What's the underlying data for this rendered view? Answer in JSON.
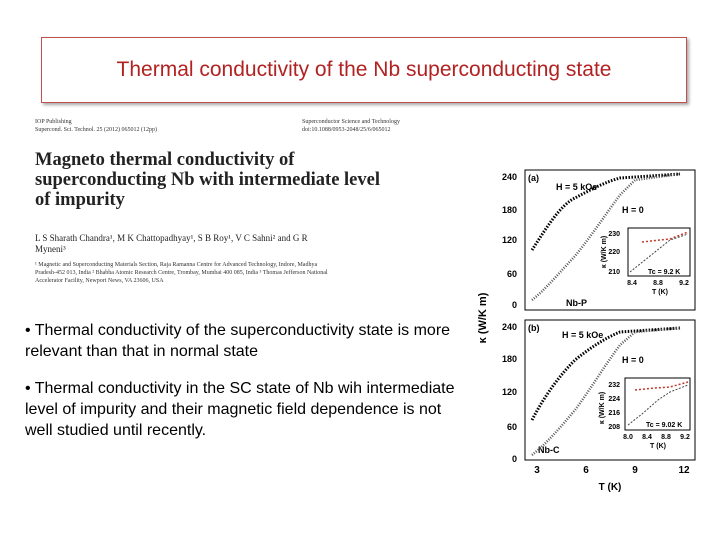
{
  "slide": {
    "title": "Thermal conductivity of the Nb superconducting state"
  },
  "paper": {
    "header_left_1": "IOP Publishing",
    "header_left_2": "Supercond. Sci. Technol. 25 (2012) 065012 (12pp)",
    "header_right_1": "Superconductor Science and Technology",
    "header_right_2": "doi:10.1088/0953-2048/25/6/065012",
    "title": "Magneto thermal conductivity of superconducting Nb with intermediate level of impurity",
    "authors": "L S Sharath Chandra¹, M K Chattopadhyay¹, S B Roy¹, V C Sahni² and G R Myneni³",
    "affiliations": "¹ Magnetic and Superconducting Materials Section, Raja Ramanna Centre for Advanced Technology, Indore, Madhya Pradesh-452 013, India ² Bhabha Atomic Research Centre, Trombay, Mumbai 400 085, India ³ Thomas Jefferson National Accelerator Facility, Newport News, VA 23606, USA"
  },
  "bullets": [
    "• Thermal conductivity of the superconductivity state is more relevant than that in normal state",
    "• Thermal conductivity in the SC state of Nb wih intermediate level of impurity and their magnetic field dependence is not well studied until recently."
  ],
  "figure": {
    "y_axis_label": "κ (W/K m)",
    "x_axis_label": "T (K)",
    "x_ticks": [
      "3",
      "6",
      "9",
      "12"
    ],
    "panel_a": {
      "letter": "(a)",
      "y_ticks": [
        "240",
        "180",
        "120",
        "60",
        "0"
      ],
      "label_h5": "H = 5 kOe",
      "label_h0": "H = 0",
      "sample": "Nb-P",
      "inset": {
        "y_label": "κ (W/K m)",
        "x_label": "T (K)",
        "y_ticks": [
          "230",
          "220",
          "210"
        ],
        "x_ticks": [
          "8.4",
          "8.8",
          "9.2"
        ],
        "tc_label": "Tc = 9.2 K"
      }
    },
    "panel_b": {
      "letter": "(b)",
      "y_ticks": [
        "240",
        "180",
        "120",
        "60",
        "0"
      ],
      "label_h5": "H = 5 kOe",
      "label_h0": "H = 0",
      "sample": "Nb-C",
      "inset": {
        "y_label": "κ (W/K m)",
        "x_label": "T (K)",
        "y_ticks": [
          "232",
          "224",
          "216",
          "208"
        ],
        "x_ticks": [
          "8.0",
          "8.4",
          "8.8",
          "9.2"
        ],
        "tc_label": "Tc = 9.02 K"
      }
    }
  }
}
